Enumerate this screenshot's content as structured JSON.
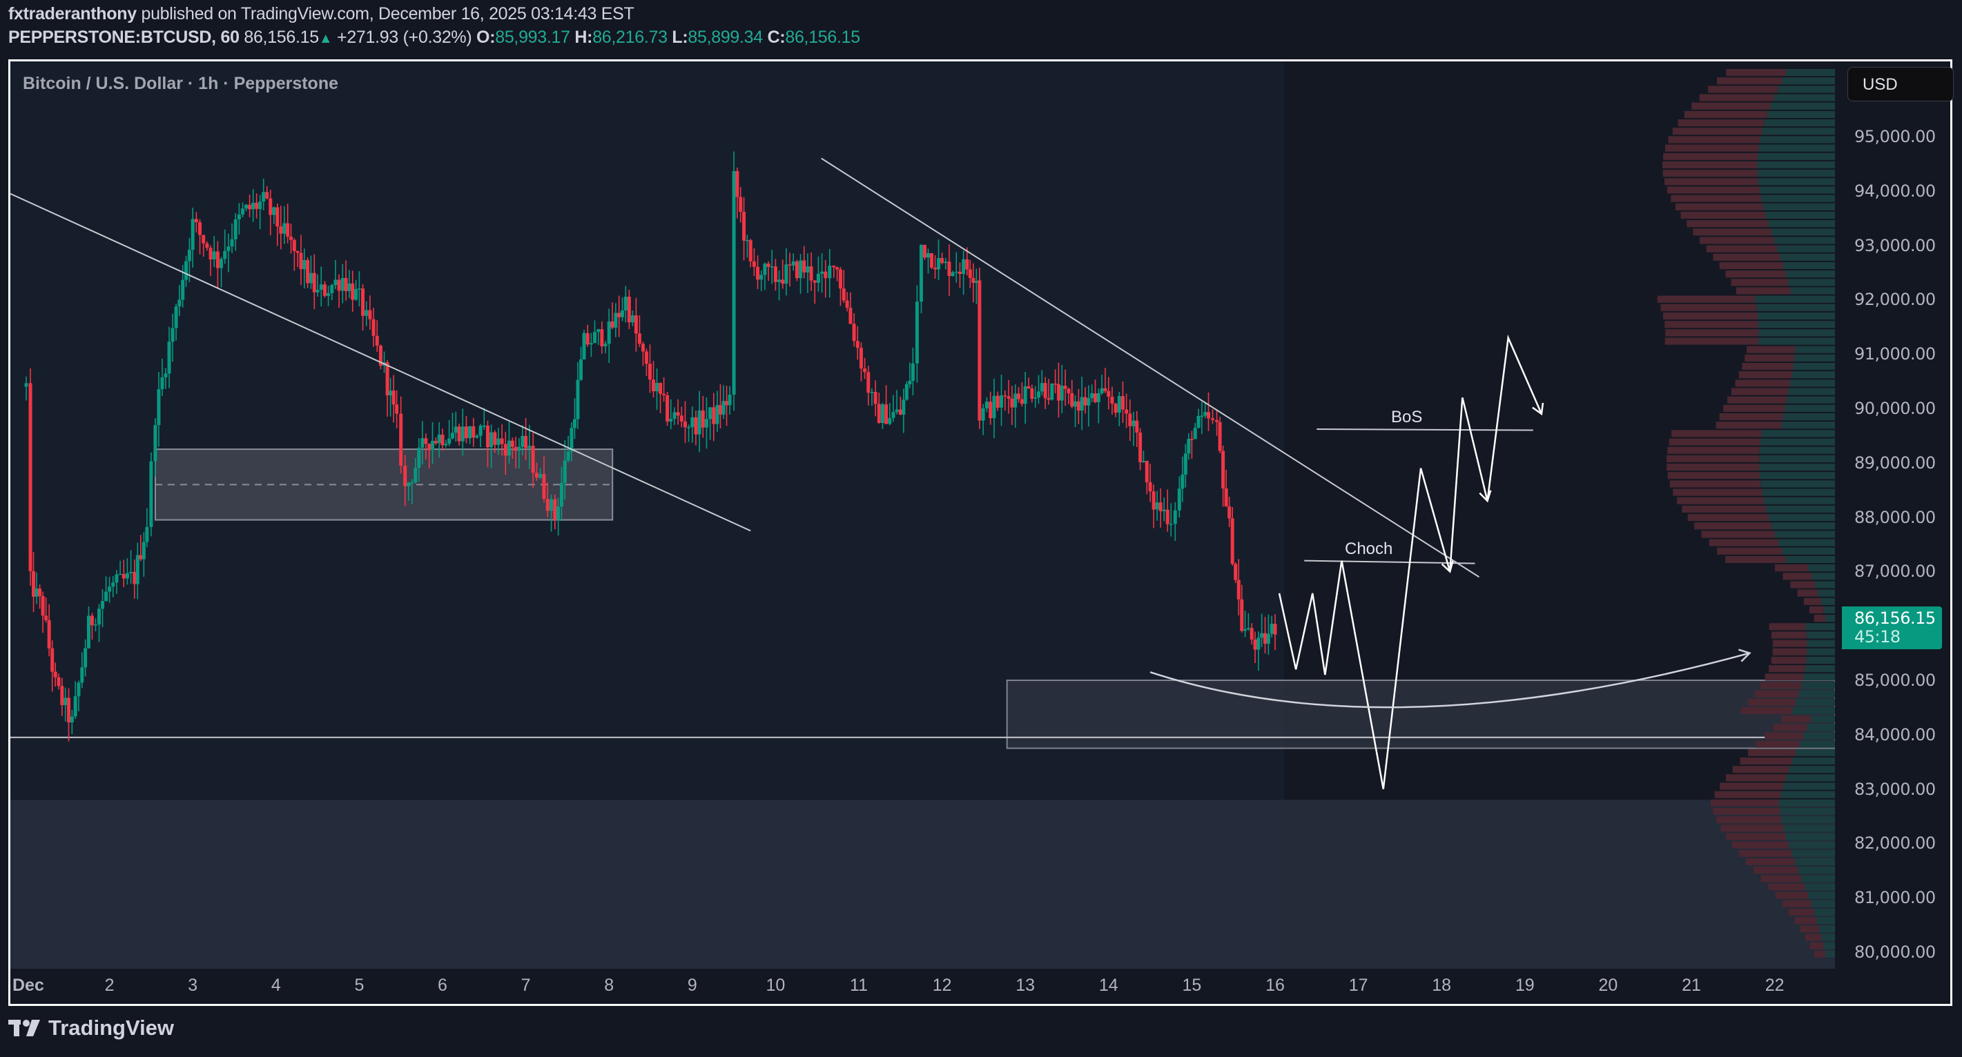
{
  "header": {
    "author": "fxtraderanthony",
    "published_text": "published on TradingView.com, December 16, 2025 03:14:43 EST",
    "symbol": "PEPPERSTONE:BTCUSD, 60",
    "last": "86,156.15",
    "change": "+271.93 (+0.32%)",
    "open_label": "O:",
    "open": "85,993.17",
    "high_label": "H:",
    "high": "86,216.73",
    "low_label": "L:",
    "low": "85,899.34",
    "close_label": "C:",
    "close": "86,156.15"
  },
  "chart": {
    "legend_title": "Bitcoin / U.S. Dollar · 1h · Pepperstone",
    "currency": "USD",
    "price_tag": {
      "price": "86,156.15",
      "countdown": "45:18"
    },
    "y_ticks": [
      "95,000.00",
      "94,000.00",
      "93,000.00",
      "92,000.00",
      "91,000.00",
      "90,000.00",
      "89,000.00",
      "88,000.00",
      "87,000.00",
      "85,000.00",
      "84,000.00",
      "83,000.00",
      "82,000.00",
      "81,000.00",
      "80,000.00"
    ],
    "x_ticks": [
      "Dec",
      "2",
      "3",
      "4",
      "5",
      "6",
      "7",
      "8",
      "9",
      "10",
      "11",
      "12",
      "13",
      "14",
      "15",
      "16",
      "17",
      "18",
      "19",
      "20",
      "21",
      "22"
    ],
    "annotations": {
      "bos": "BoS",
      "choch": "Choch"
    },
    "colors": {
      "up": "#089981",
      "down": "#f23645",
      "drawing": "#d1d4dc",
      "background": "#161e2c",
      "profile_up": "#1b3d3f",
      "profile_down": "#4a2731"
    }
  },
  "branding": {
    "logo_text": "TradingView"
  },
  "chart_data": {
    "type": "candlestick",
    "title": "Bitcoin / U.S. Dollar · 1h · Pepperstone",
    "symbol": "PEPPERSTONE:BTCUSD",
    "timeframe": "1h",
    "xlabel": "",
    "ylabel": "USD",
    "ylim": [
      79700,
      95700
    ],
    "x_tick_labels": [
      "Dec",
      "2",
      "3",
      "4",
      "5",
      "6",
      "7",
      "8",
      "9",
      "10",
      "11",
      "12",
      "13",
      "14",
      "15",
      "16",
      "17",
      "18",
      "19",
      "20",
      "21",
      "22"
    ],
    "y_tick_values": [
      80000,
      81000,
      82000,
      83000,
      84000,
      85000,
      86000,
      87000,
      88000,
      89000,
      90000,
      91000,
      92000,
      93000,
      94000,
      95000
    ],
    "last_price": 86156.15,
    "ohlc_last": {
      "open": 85993.17,
      "high": 86216.73,
      "low": 85899.34,
      "close": 86156.15
    },
    "approx_daily_path": [
      {
        "day": "Dec 1",
        "price": 90400
      },
      {
        "day": "Dec 1 low",
        "price": 83900
      },
      {
        "day": "Dec 2",
        "price": 86700
      },
      {
        "day": "Dec 3",
        "price": 93500
      },
      {
        "day": "Dec 4",
        "price": 93800
      },
      {
        "day": "Dec 5",
        "price": 92000
      },
      {
        "day": "Dec 5 low",
        "price": 88200
      },
      {
        "day": "Dec 6",
        "price": 89700
      },
      {
        "day": "Dec 7",
        "price": 89500
      },
      {
        "day": "Dec 7 low",
        "price": 87800
      },
      {
        "day": "Dec 8",
        "price": 91500
      },
      {
        "day": "Dec 9",
        "price": 90200
      },
      {
        "day": "Dec 9 high",
        "price": 94500
      },
      {
        "day": "Dec 10",
        "price": 92300
      },
      {
        "day": "Dec 11",
        "price": 90000
      },
      {
        "day": "Dec 11 high",
        "price": 93400
      },
      {
        "day": "Dec 12",
        "price": 92400
      },
      {
        "day": "Dec 12 drop",
        "price": 90000
      },
      {
        "day": "Dec 13",
        "price": 90400
      },
      {
        "day": "Dec 14",
        "price": 90000
      },
      {
        "day": "Dec 14 low",
        "price": 87700
      },
      {
        "day": "Dec 15",
        "price": 89800
      },
      {
        "day": "Dec 15 low",
        "price": 85300
      },
      {
        "day": "Dec 16",
        "price": 86156
      }
    ],
    "drawings": {
      "zones": [
        {
          "label": "demand zone (Dec 2 - Dec 8)",
          "top": 89250,
          "bottom": 87950,
          "midline": 88600
        },
        {
          "label": "demand zone (Dec 13 - right)",
          "top": 85000,
          "bottom": 83750
        },
        {
          "label": "lower shaded area",
          "top": 82800,
          "bottom": 79700
        }
      ],
      "horizontal_lines": [
        {
          "price": 83950,
          "label": "support"
        }
      ],
      "trendlines": [
        "descending trendline Dec 1 -> Dec 9",
        "descending trendline Dec 10 -> Dec 18"
      ],
      "levels": [
        {
          "label": "Choch",
          "price": 87200
        },
        {
          "label": "BoS",
          "price": 89600
        }
      ],
      "projection_path": [
        86600,
        85200,
        86600,
        85100,
        87200,
        83000,
        88900,
        87000,
        90200,
        88400,
        91300,
        89900
      ]
    },
    "volume_profile": {
      "position": "right",
      "poc_price": 90200
    }
  }
}
